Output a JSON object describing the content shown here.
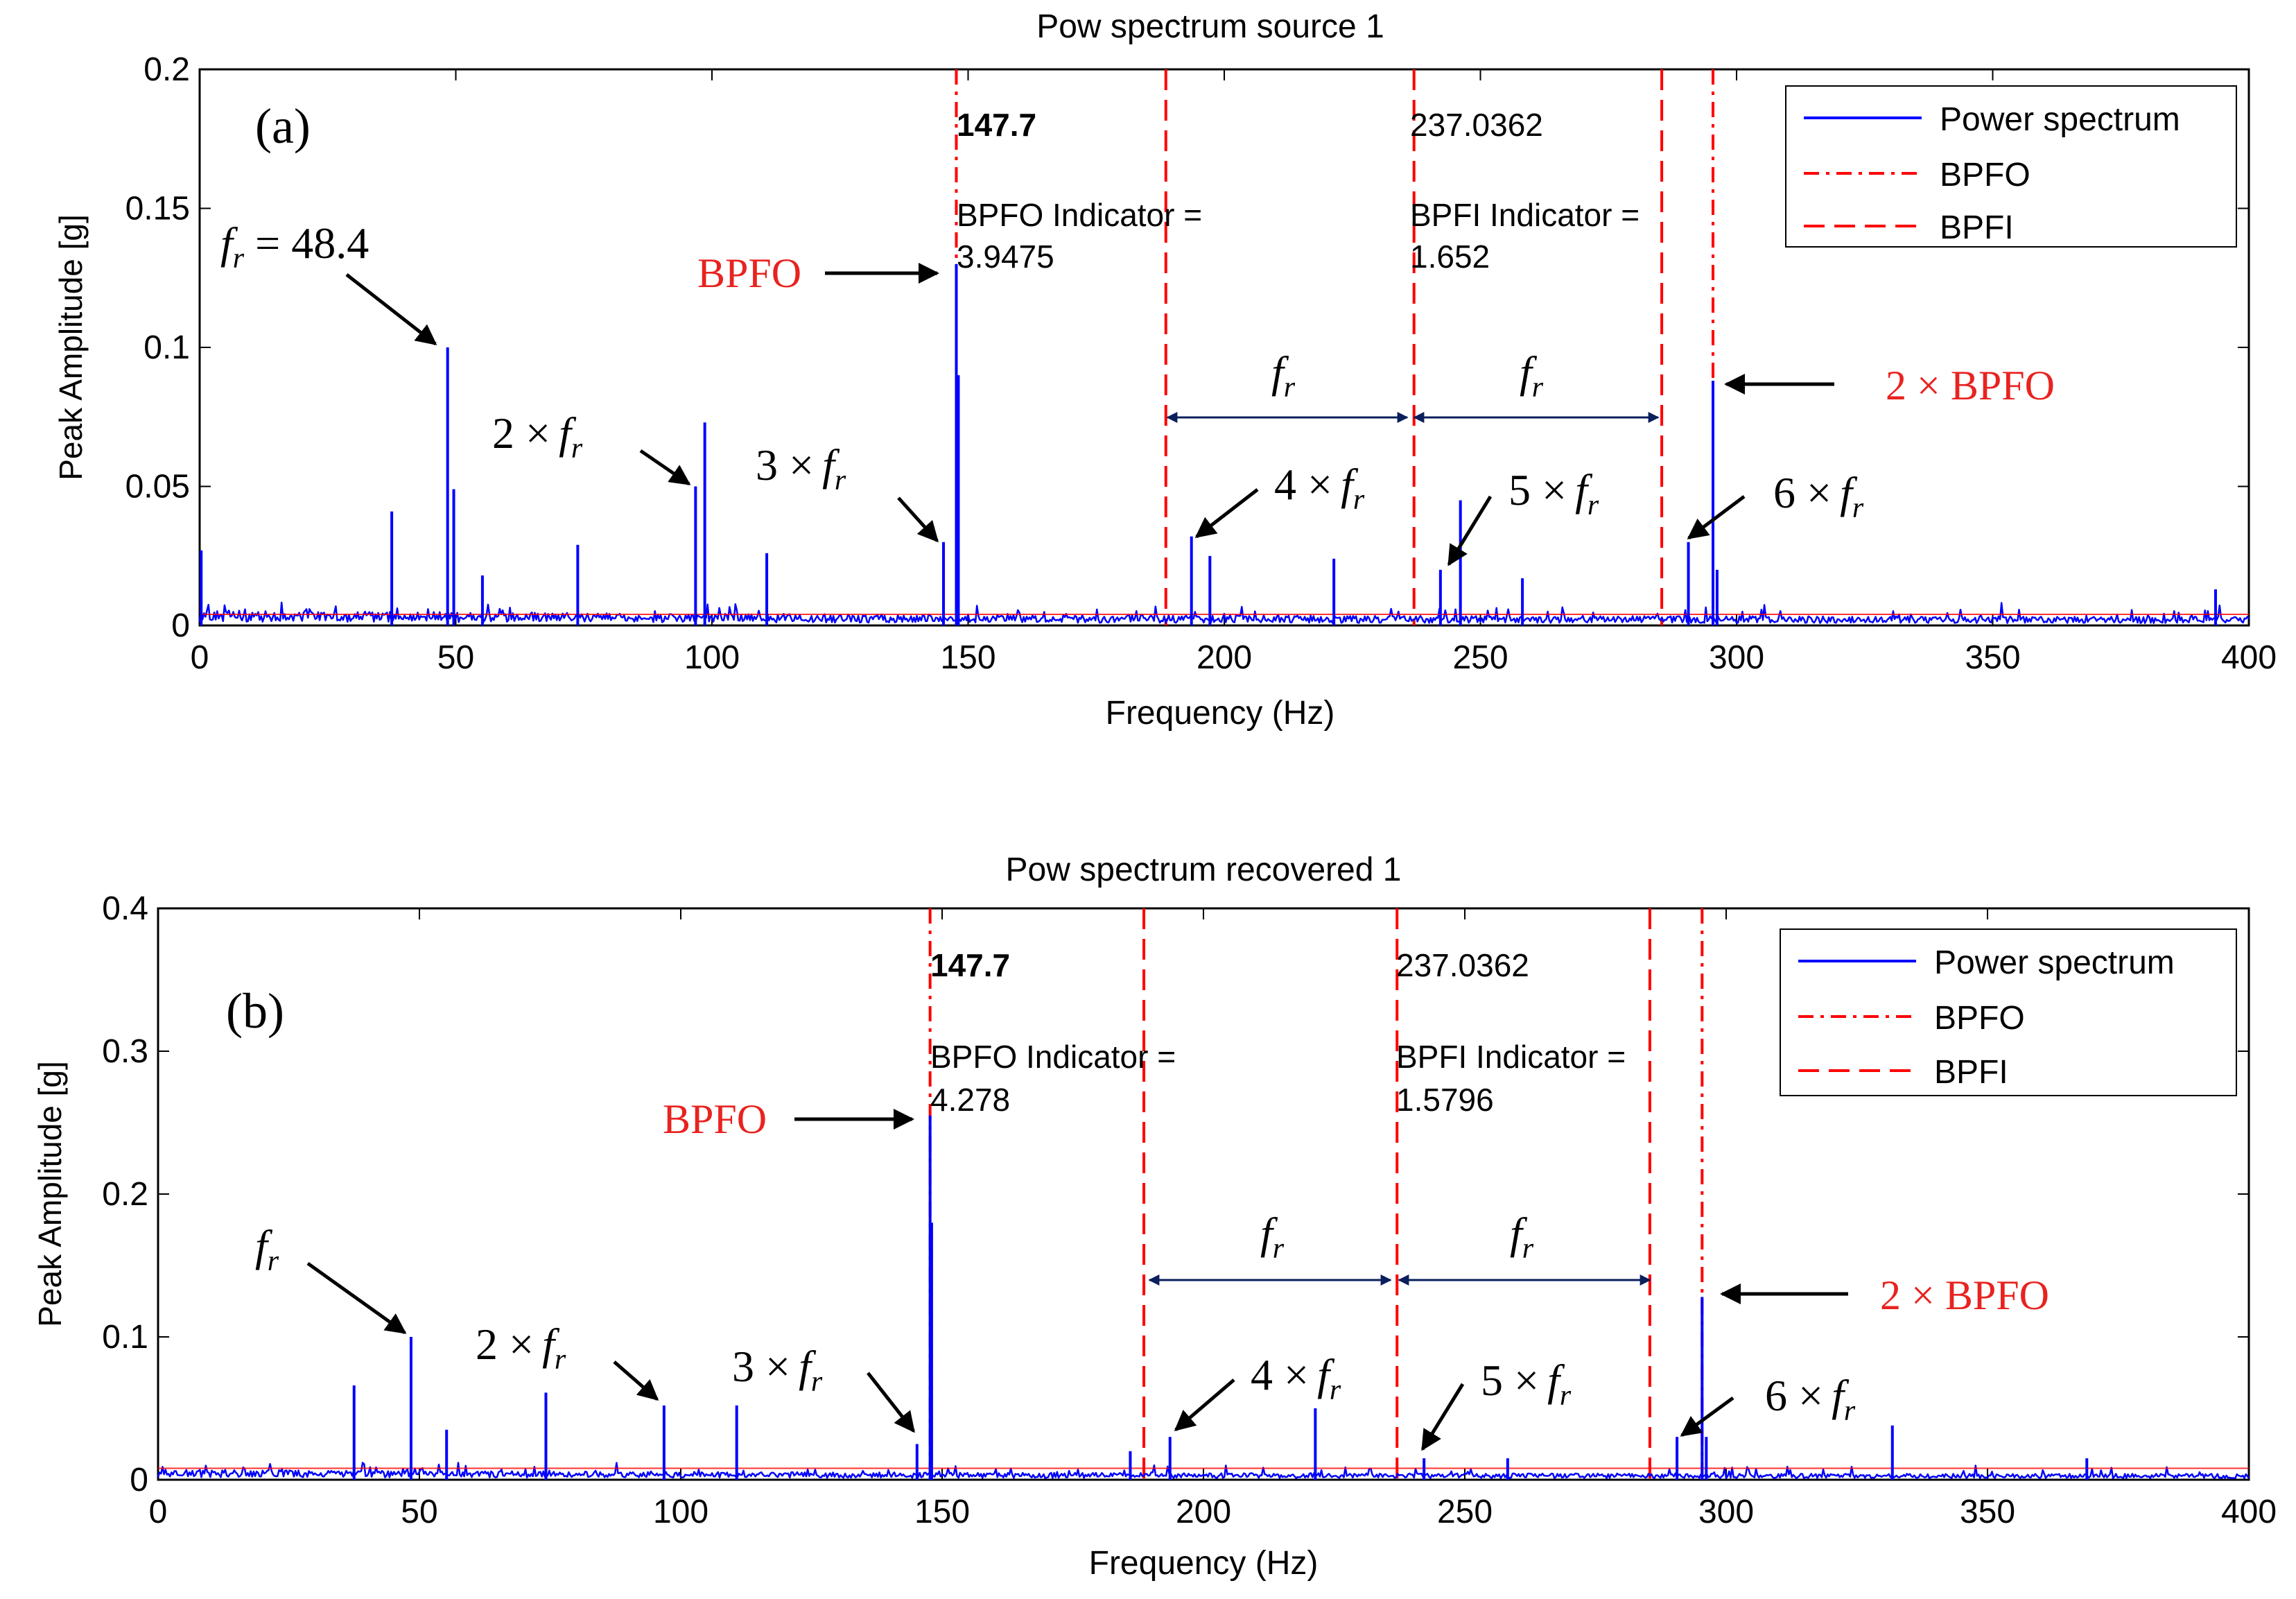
{
  "chart_data": [
    {
      "panel_label": "(a)",
      "type": "line",
      "title": "Pow spectrum source 1",
      "xlabel": "Frequency (Hz)",
      "ylabel": "Peak Amplitude [g]",
      "xlim": [
        0,
        400
      ],
      "ylim": [
        0,
        0.2
      ],
      "xticks": [
        0,
        50,
        100,
        150,
        200,
        250,
        300,
        350,
        400
      ],
      "yticks": [
        0,
        0.05,
        0.1,
        0.15,
        0.2
      ],
      "ytick_labels": [
        "0",
        "0.05",
        "0.1",
        "0.15",
        "0.2"
      ],
      "grid": false,
      "legend_position": "top-right",
      "legend": [
        "Power spectrum",
        "BPFO",
        "BPFI"
      ],
      "series": [
        {
          "name": "Power spectrum",
          "color": "#0000ff",
          "peaks": [
            {
              "f": 0.3,
              "a": 0.027
            },
            {
              "f": 37.5,
              "a": 0.041
            },
            {
              "f": 48.4,
              "a": 0.1
            },
            {
              "f": 49.6,
              "a": 0.049
            },
            {
              "f": 55.2,
              "a": 0.018
            },
            {
              "f": 73.8,
              "a": 0.029
            },
            {
              "f": 96.8,
              "a": 0.05
            },
            {
              "f": 98.6,
              "a": 0.073
            },
            {
              "f": 110.7,
              "a": 0.026
            },
            {
              "f": 145.2,
              "a": 0.03
            },
            {
              "f": 147.7,
              "a": 0.13
            },
            {
              "f": 148.1,
              "a": 0.09
            },
            {
              "f": 193.6,
              "a": 0.032
            },
            {
              "f": 197.2,
              "a": 0.025
            },
            {
              "f": 221.4,
              "a": 0.024
            },
            {
              "f": 242.2,
              "a": 0.02
            },
            {
              "f": 246.1,
              "a": 0.045
            },
            {
              "f": 258.2,
              "a": 0.017
            },
            {
              "f": 290.6,
              "a": 0.03
            },
            {
              "f": 295.4,
              "a": 0.088
            },
            {
              "f": 296.2,
              "a": 0.02
            },
            {
              "f": 393.5,
              "a": 0.013
            }
          ]
        }
      ],
      "vlines": [
        {
          "kind": "BPFO",
          "x": 147.7,
          "style": "dashdot"
        },
        {
          "kind": "BPFI",
          "x": 188.6,
          "style": "dashed"
        },
        {
          "kind": "BPFI",
          "x": 237.0362,
          "style": "dashed"
        },
        {
          "kind": "BPFI",
          "x": 285.4,
          "style": "dashed"
        },
        {
          "kind": "BPFO",
          "x": 295.4,
          "style": "dashdot"
        }
      ],
      "text_labels": {
        "bpfo_value": "147.7",
        "bpfo_indicator_label": "BPFO Indicator =",
        "bpfo_indicator_value": "3.9475",
        "bpfi_value": "237.0362",
        "bpfi_indicator_label": "BPFI Indicator =",
        "bpfi_indicator_value": "1.652"
      },
      "annotations": {
        "fr_label_prefix": "f",
        "fr_label_sub": "r",
        "fr_value_label": "= 48.4",
        "harmonic_1": "2 ×",
        "harmonic_2": "3 ×",
        "harmonic_3": "4 ×",
        "harmonic_4": "5 ×",
        "harmonic_5": "6 ×",
        "bpfo_label": "BPFO",
        "bpfo2_label": "2 × BPFO"
      }
    },
    {
      "panel_label": "(b)",
      "type": "line",
      "title": "Pow spectrum recovered 1",
      "xlabel": "Frequency (Hz)",
      "ylabel": "Peak Amplitude [g]",
      "xlim": [
        0,
        400
      ],
      "ylim": [
        0,
        0.4
      ],
      "xticks": [
        0,
        50,
        100,
        150,
        200,
        250,
        300,
        350,
        400
      ],
      "yticks": [
        0,
        0.1,
        0.2,
        0.3,
        0.4
      ],
      "ytick_labels": [
        "0",
        "0.1",
        "0.2",
        "0.3",
        "0.4"
      ],
      "grid": false,
      "legend_position": "top-right",
      "legend": [
        "Power spectrum",
        "BPFO",
        "BPFI"
      ],
      "series": [
        {
          "name": "Power spectrum",
          "color": "#0000ff",
          "peaks": [
            {
              "f": 37.5,
              "a": 0.066
            },
            {
              "f": 48.4,
              "a": 0.1
            },
            {
              "f": 55.2,
              "a": 0.035
            },
            {
              "f": 74.2,
              "a": 0.061
            },
            {
              "f": 96.8,
              "a": 0.052
            },
            {
              "f": 110.7,
              "a": 0.052
            },
            {
              "f": 145.2,
              "a": 0.025
            },
            {
              "f": 147.7,
              "a": 0.255
            },
            {
              "f": 148.0,
              "a": 0.18
            },
            {
              "f": 186.0,
              "a": 0.02
            },
            {
              "f": 193.6,
              "a": 0.03
            },
            {
              "f": 221.4,
              "a": 0.05
            },
            {
              "f": 242.2,
              "a": 0.015
            },
            {
              "f": 258.2,
              "a": 0.015
            },
            {
              "f": 290.6,
              "a": 0.03
            },
            {
              "f": 295.4,
              "a": 0.128
            },
            {
              "f": 296.2,
              "a": 0.03
            },
            {
              "f": 331.8,
              "a": 0.038
            },
            {
              "f": 369.0,
              "a": 0.015
            }
          ]
        }
      ],
      "vlines": [
        {
          "kind": "BPFO",
          "x": 147.7,
          "style": "dashdot"
        },
        {
          "kind": "BPFI",
          "x": 188.6,
          "style": "dashed"
        },
        {
          "kind": "BPFI",
          "x": 237.0362,
          "style": "dashed"
        },
        {
          "kind": "BPFI",
          "x": 285.4,
          "style": "dashed"
        },
        {
          "kind": "BPFO",
          "x": 295.4,
          "style": "dashdot"
        }
      ],
      "text_labels": {
        "bpfo_value": "147.7",
        "bpfo_indicator_label": "BPFO Indicator =",
        "bpfo_indicator_value": "4.278",
        "bpfi_value": "237.0362",
        "bpfi_indicator_label": "BPFI Indicator =",
        "bpfi_indicator_value": "1.5796"
      },
      "annotations": {
        "fr_label_prefix": "f",
        "fr_label_sub": "r",
        "harmonic_1": "2 ×",
        "harmonic_2": "3 ×",
        "harmonic_3": "4 ×",
        "harmonic_4": "5 ×",
        "harmonic_5": "6 ×",
        "bpfo_label": "BPFO",
        "bpfo2_label": "2 × BPFO"
      }
    }
  ],
  "colors": {
    "spectrum": "#0000ff",
    "bpfo_bpfi_lines": "#ff0000",
    "annotation_red": "#e8231f",
    "fr_arrow": "#0a1f5c"
  }
}
